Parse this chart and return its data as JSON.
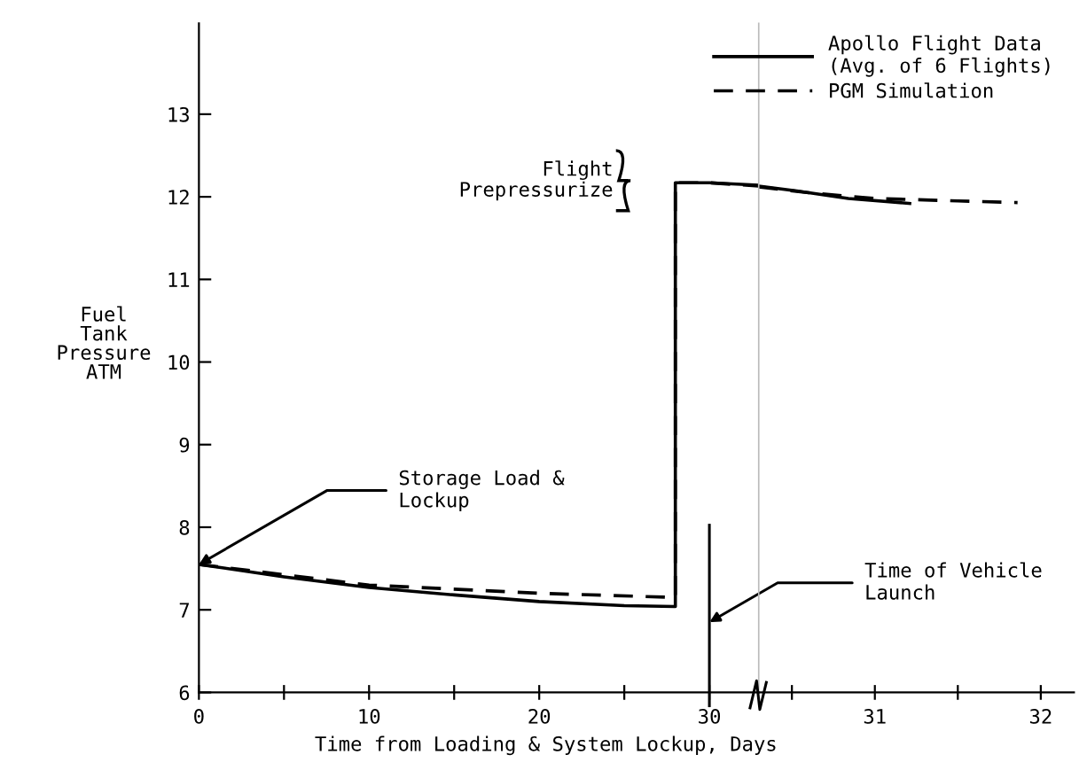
{
  "chart_data": [
    {
      "type": "line",
      "xlabel": "Time from Loading & System Lockup, Days",
      "ylabel": "Fuel\nTank\nPressure\nATM",
      "xlim": [
        0,
        32.9
      ],
      "ylim": [
        6,
        14.1
      ],
      "xticks": [
        0,
        {
          "value": 5,
          "label": null
        },
        10,
        {
          "value": 15,
          "label": null
        },
        20,
        {
          "value": 25,
          "label": null
        },
        30
      ],
      "yticks": [
        6,
        7,
        8,
        9,
        10,
        11,
        12,
        13
      ],
      "legend": "top right",
      "series": [
        {
          "name": "Apollo Flight Data\n(Avg. of 6 Flights)",
          "color": "#000000",
          "line_style": "solid",
          "x": [
            0,
            5,
            10,
            15,
            20,
            25,
            28.0,
            28.0,
            30,
            32.9
          ],
          "values": [
            7.55,
            7.4,
            7.27,
            7.18,
            7.1,
            7.05,
            7.04,
            12.17,
            12.17,
            12.14
          ]
        },
        {
          "name": "PGM Simulation",
          "color": "#000000",
          "line_style": "dashed",
          "x": [
            0,
            10,
            20,
            28.0,
            28.0,
            30,
            32.9
          ],
          "values": [
            7.55,
            7.3,
            7.2,
            7.15,
            12.17,
            12.17,
            12.13
          ]
        }
      ],
      "ref_lines": [
        {
          "axis": "x",
          "value": 30,
          "color": "#000000"
        }
      ],
      "annotations": [
        {
          "text": "Storage Load &\nLockup",
          "x": 0,
          "y": 7.55
        },
        {
          "text": "Time of Vehicle\nLaunch",
          "x": 30,
          "y": 6.85
        },
        "Flight\nPrepressurize"
      ]
    },
    {
      "type": "line",
      "xlim": [
        30.3,
        32.2
      ],
      "ylim": [
        6,
        14.1
      ],
      "yticks": [
        6,
        7,
        8,
        9,
        10,
        11,
        12,
        13
      ],
      "tick_labels": "x",
      "xticks": [
        {
          "value": 30.5,
          "label": null
        },
        31,
        {
          "value": 31.5,
          "label": null
        },
        32
      ],
      "series": [
        {
          "color": "#000000",
          "line_style": "solid",
          "x": [
            30.3,
            30.53,
            30.84,
            31.21
          ],
          "values": [
            12.13,
            12.07,
            11.98,
            11.92
          ]
        },
        {
          "color": "#000000",
          "line_style": "dashed",
          "x": [
            30.3,
            30.6,
            31.0,
            31.5,
            31.86
          ],
          "values": [
            12.12,
            12.05,
            11.98,
            11.95,
            11.93
          ]
        }
      ]
    }
  ]
}
